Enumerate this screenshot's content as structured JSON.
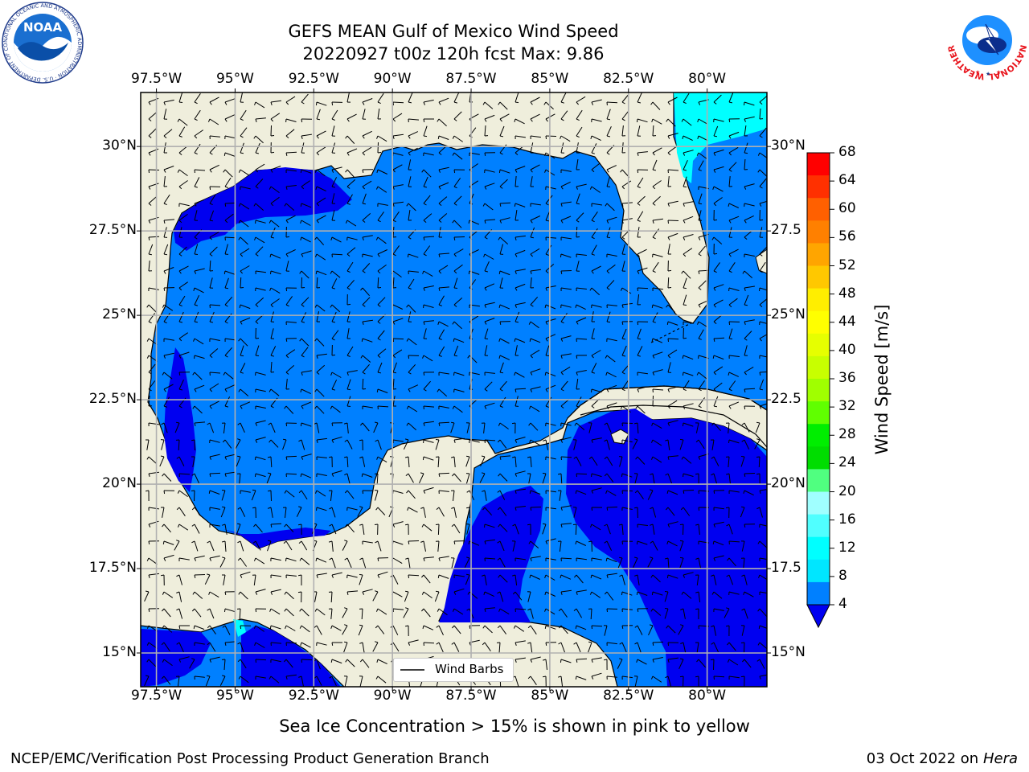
{
  "title": {
    "line1": "GEFS MEAN Gulf of Mexico Wind Speed",
    "line2": "20220927 t00z 120h fcst   Max: 9.86"
  },
  "map": {
    "lon_ticks": [
      "97.5°W",
      "95°W",
      "92.5°W",
      "90°W",
      "87.5°W",
      "85°W",
      "82.5°W",
      "80°W"
    ],
    "lon_values": [
      -97.5,
      -95,
      -92.5,
      -90,
      -87.5,
      -85,
      -82.5,
      -80
    ],
    "lat_ticks_left": [
      "30°N",
      "27.5°N",
      "25°N",
      "22.5°N",
      "20°N",
      "17.5°N",
      "15°N"
    ],
    "lat_ticks_right": [
      "30°N",
      "27.5",
      "25°N",
      "22.5",
      "20°N",
      "17.5",
      "15°N"
    ],
    "lat_values": [
      30,
      27.5,
      25,
      22.5,
      20,
      17.5,
      15
    ],
    "extent": {
      "lon_min": -98,
      "lon_max": -78.1,
      "lat_min": 14,
      "lat_max": 31.6
    },
    "legend_label": "Wind Barbs",
    "colors": {
      "land": "#efeedc",
      "ocean_4_8": "#0080ff",
      "ocean_below_4": "#0000f0",
      "ocean_8_12": "#00ffff",
      "grid": "#b0b0b0"
    }
  },
  "colorbar": {
    "label": "Wind Speed [m/s]",
    "ticks": [
      "68",
      "64",
      "60",
      "56",
      "52",
      "48",
      "44",
      "40",
      "36",
      "32",
      "28",
      "24",
      "20",
      "16",
      "12",
      "8",
      "4"
    ],
    "colors": [
      "#ff0000",
      "#ff3000",
      "#ff6000",
      "#ff8000",
      "#ffa500",
      "#ffc800",
      "#ffee00",
      "#ffff00",
      "#e6ff00",
      "#c8ff00",
      "#a0ff00",
      "#60ff00",
      "#00ee00",
      "#00dd00",
      "#50ff80",
      "#a0ffff",
      "#50ffff",
      "#00ffff",
      "#00e6ff",
      "#0080ff"
    ],
    "under_color": "#0000f0"
  },
  "footer": {
    "note": "Sea Ice Concentration > 15% is shown in pink to yellow",
    "left_credit": "NCEP/EMC/Verification Post Processing Product Generation Branch",
    "right_credit_prefix": "03 Oct 2022 on ",
    "right_credit_host": "Hera"
  },
  "logos": {
    "noaa_text": "NOAA",
    "noaa_ring": "NATIONAL OCEANIC AND ATMOSPHERIC ADMINISTRATION · U.S. DEPARTMENT OF COMMERCE",
    "nws_ring": "NATIONAL WEATHER SERVICE"
  }
}
